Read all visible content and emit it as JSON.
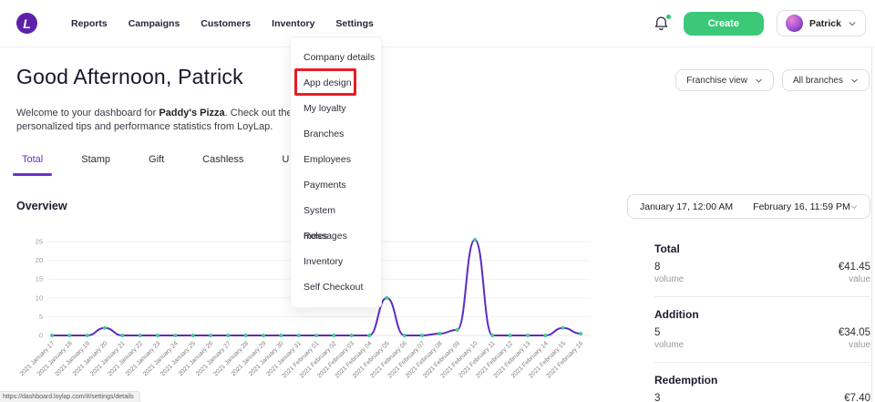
{
  "colors": {
    "accent_purple": "#6a2fd0",
    "brand_green": "#3bc977",
    "annotation_red": "#ea1c23",
    "chart_line": "#5b2bc4",
    "chart_marker": "#3ecf8e"
  },
  "header": {
    "logo_letter": "L",
    "nav": [
      {
        "label": "Reports",
        "active": false
      },
      {
        "label": "Campaigns",
        "active": false
      },
      {
        "label": "Customers",
        "active": false
      },
      {
        "label": "Inventory",
        "active": false
      },
      {
        "label": "Settings",
        "active": true
      }
    ],
    "create_label": "Create",
    "user_name": "Patrick"
  },
  "settings_menu": {
    "items": [
      "Company details",
      "App design",
      "My loyalty",
      "Branches",
      "Employees",
      "Payments",
      "System messages",
      "Roles",
      "Inventory",
      "Self Checkout"
    ],
    "highlighted_index": 1
  },
  "hero": {
    "greeting": "Good Afternoon, Patrick",
    "welcome_prefix": "Welcome to your dashboard for ",
    "company": "Paddy's Pizza",
    "welcome_suffix": ". Check out these personalized tips and performance statistics from LoyLap."
  },
  "filters": {
    "franchise_label": "Franchise view",
    "branches_label": "All branches"
  },
  "tabs": [
    {
      "label": "Total",
      "active": true
    },
    {
      "label": "Stamp",
      "active": false
    },
    {
      "label": "Gift",
      "active": false
    },
    {
      "label": "Cashless",
      "active": false
    },
    {
      "label": "Upfront",
      "active": false
    }
  ],
  "overview": {
    "title": "Overview",
    "date_from": "January 17, 12:00 AM",
    "date_to": "February 16, 11:59 PM"
  },
  "chart_data": {
    "type": "line",
    "title": "Overview",
    "categories": [
      "2021 January 17",
      "2021 January 18",
      "2021 January 19",
      "2021 January 20",
      "2021 January 21",
      "2021 January 22",
      "2021 January 23",
      "2021 January 24",
      "2021 January 25",
      "2021 January 26",
      "2021 January 27",
      "2021 January 28",
      "2021 January 29",
      "2021 January 30",
      "2021 January 31",
      "2021 February 01",
      "2021 February 02",
      "2021 February 03",
      "2021 February 04",
      "2021 February 05",
      "2021 February 06",
      "2021 February 07",
      "2021 February 08",
      "2021 February 09",
      "2021 February 10",
      "2021 February 11",
      "2021 February 12",
      "2021 February 13",
      "2021 February 14",
      "2021 February 15",
      "2021 February 16"
    ],
    "values": [
      0,
      0,
      0,
      2,
      0,
      0,
      0,
      0,
      0,
      0,
      0,
      0,
      0,
      0,
      0,
      0,
      0,
      0,
      0,
      10,
      0,
      0,
      0.5,
      1.5,
      25.5,
      0,
      0,
      0,
      0,
      2,
      0.5
    ],
    "yticks": [
      0,
      5,
      10,
      15,
      20,
      25
    ],
    "ylim": [
      0,
      25
    ],
    "grid": true,
    "legend": false
  },
  "stats": [
    {
      "title": "Total",
      "volume": "8",
      "volume_label": "volume",
      "value": "€41.45",
      "value_label": "value"
    },
    {
      "title": "Addition",
      "volume": "5",
      "volume_label": "volume",
      "value": "€34.05",
      "value_label": "value"
    },
    {
      "title": "Redemption",
      "volume": "3",
      "volume_label": "",
      "value": "€7.40",
      "value_label": ""
    }
  ],
  "statusbar": {
    "url": "https://dashboard.loylap.com/#/settings/details"
  }
}
